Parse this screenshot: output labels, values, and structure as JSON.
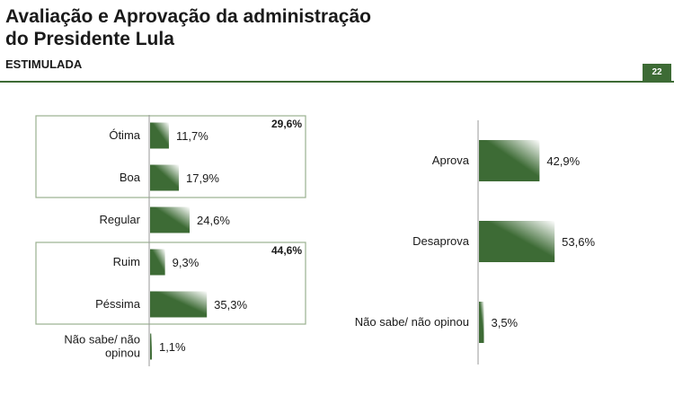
{
  "header": {
    "title_line1": "Avaliação e Aprovação da administração",
    "title_line2": "do Presidente Lula",
    "subtitle": "ESTIMULADA",
    "page_number": "22"
  },
  "colors": {
    "bar_dark": "#3d6b35",
    "bar_light": "#ffffff",
    "accent": "#3d6b35",
    "box_border": "#9ab08f"
  },
  "chart_data": [
    {
      "type": "bar",
      "orientation": "horizontal",
      "categories": [
        "Ótima",
        "Boa",
        "Regular",
        "Ruim",
        "Péssima",
        "Não sabe/ não opinou"
      ],
      "values": [
        11.7,
        17.9,
        24.6,
        9.3,
        35.3,
        1.1
      ],
      "value_labels": [
        "11,7%",
        "17,9%",
        "24,6%",
        "9,3%",
        "35,3%",
        "1,1%"
      ],
      "groups": [
        {
          "label": "29,6%",
          "categories": [
            "Ótima",
            "Boa"
          ]
        },
        {
          "label": "44,6%",
          "categories": [
            "Ruim",
            "Péssima"
          ]
        }
      ]
    },
    {
      "type": "bar",
      "orientation": "horizontal",
      "categories": [
        "Aprova",
        "Desaprova",
        "Não sabe/ não opinou"
      ],
      "values": [
        42.9,
        53.6,
        3.5
      ],
      "value_labels": [
        "42,9%",
        "53,6%",
        "3,5%"
      ]
    }
  ]
}
